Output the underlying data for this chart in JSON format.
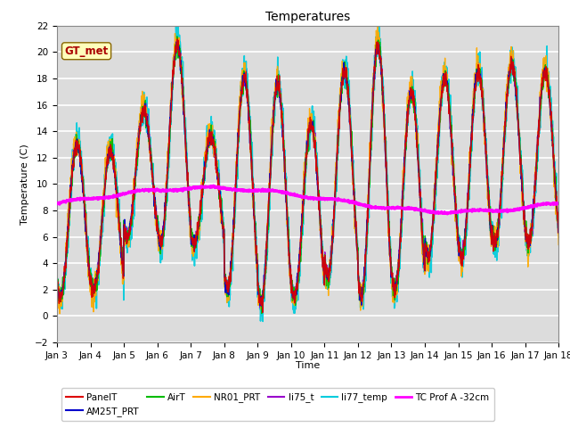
{
  "title": "Temperatures",
  "xlabel": "Time",
  "ylabel": "Temperature (C)",
  "ylim": [
    -2,
    22
  ],
  "xlim": [
    0,
    15
  ],
  "x_tick_labels": [
    "Jan 3",
    "Jan 4",
    "Jan 5",
    "Jan 6",
    "Jan 7",
    "Jan 8",
    "Jan 9",
    "Jan 10",
    "Jan 11",
    "Jan 12",
    "Jan 13",
    "Jan 14",
    "Jan 15",
    "Jan 16",
    "Jan 17",
    "Jan 18"
  ],
  "series": {
    "PanelT": {
      "color": "#dd0000",
      "lw": 1.0
    },
    "AM25T_PRT": {
      "color": "#0000cc",
      "lw": 1.0
    },
    "AirT": {
      "color": "#00bb00",
      "lw": 1.0
    },
    "NR01_PRT": {
      "color": "#ffaa00",
      "lw": 1.0
    },
    "li75_t": {
      "color": "#9900cc",
      "lw": 1.0
    },
    "li77_temp": {
      "color": "#00ccdd",
      "lw": 1.2
    },
    "TC Prof A -32cm": {
      "color": "#ff00ff",
      "lw": 2.0
    }
  },
  "annotation_text": "GT_met",
  "bg_color": "#dcdcdc",
  "grid_color": "#ffffff",
  "title_fontsize": 10,
  "axis_label_fontsize": 8,
  "tick_fontsize": 7.5,
  "legend_fontsize": 7.5
}
